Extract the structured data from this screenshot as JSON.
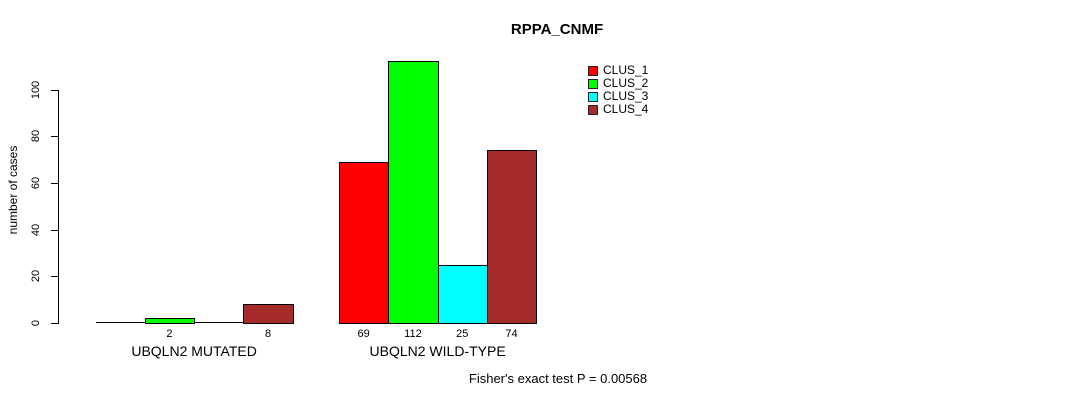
{
  "title": "RPPA_CNMF",
  "y_axis_label": "number of cases",
  "footer": "Fisher's exact test P = 0.00568",
  "chart_data": {
    "type": "bar",
    "subtype": "grouped",
    "title": "RPPA_CNMF",
    "xlabel": "",
    "ylabel": "number of cases",
    "ylim": [
      0,
      100
    ],
    "yticks": [
      0,
      20,
      40,
      60,
      80,
      100
    ],
    "grid": false,
    "legend_position": "top-right",
    "legend": [
      {
        "name": "CLUS_1",
        "color": "#FF0000"
      },
      {
        "name": "CLUS_2",
        "color": "#00FF00"
      },
      {
        "name": "CLUS_3",
        "color": "#00FFFF"
      },
      {
        "name": "CLUS_4",
        "color": "#A52A2A"
      }
    ],
    "categories": [
      "UBQLN2 MUTATED",
      "UBQLN2 WILD-TYPE"
    ],
    "groups": [
      {
        "label": "UBQLN2 MUTATED",
        "values": [
          0,
          2,
          0,
          8
        ],
        "bar_labels": [
          "",
          "2",
          "",
          "8"
        ]
      },
      {
        "label": "UBQLN2 WILD-TYPE",
        "values": [
          69,
          112,
          25,
          74
        ],
        "bar_labels": [
          "69",
          "112",
          "25",
          "74"
        ]
      }
    ],
    "annotation": "Fisher's exact test P = 0.00568"
  }
}
